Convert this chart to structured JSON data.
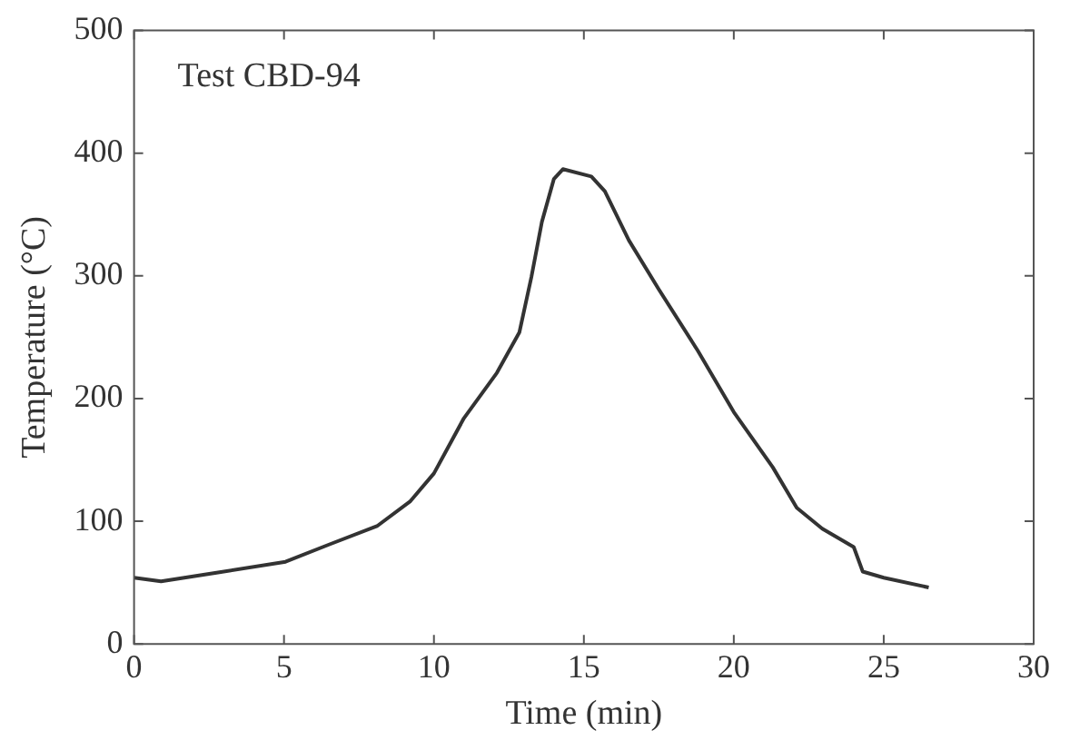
{
  "chart_data": {
    "type": "line",
    "xlabel": "Time (min)",
    "ylabel": "Temperature (°C)",
    "annotations": [
      "Test CBD-94"
    ],
    "xlim": [
      0,
      30
    ],
    "xticks": [
      0,
      5,
      10,
      15,
      20,
      25,
      30
    ],
    "ylim": [
      0,
      500
    ],
    "yticks": [
      0,
      100,
      200,
      300,
      400,
      500
    ],
    "grid": false,
    "legend": false,
    "marker": "none",
    "line_style": "solid",
    "series": [
      {
        "color": "#333333",
        "x": [
          0,
          0.9,
          2.75,
          5.05,
          6.5,
          8.1,
          9.2,
          10.0,
          11.0,
          12.1,
          12.85,
          13.25,
          13.6,
          14.0,
          14.3,
          15.25,
          15.7,
          16.5,
          17.5,
          18.8,
          20.0,
          21.3,
          22.1,
          22.95,
          24.0,
          24.3,
          25.0,
          26.5
        ],
        "values": [
          54,
          51,
          58,
          67,
          81,
          96,
          116,
          139,
          184,
          221,
          254,
          299,
          344,
          379,
          387,
          381,
          369,
          329,
          289,
          239,
          189,
          144,
          111,
          94,
          79,
          59,
          54,
          46
        ]
      }
    ]
  }
}
